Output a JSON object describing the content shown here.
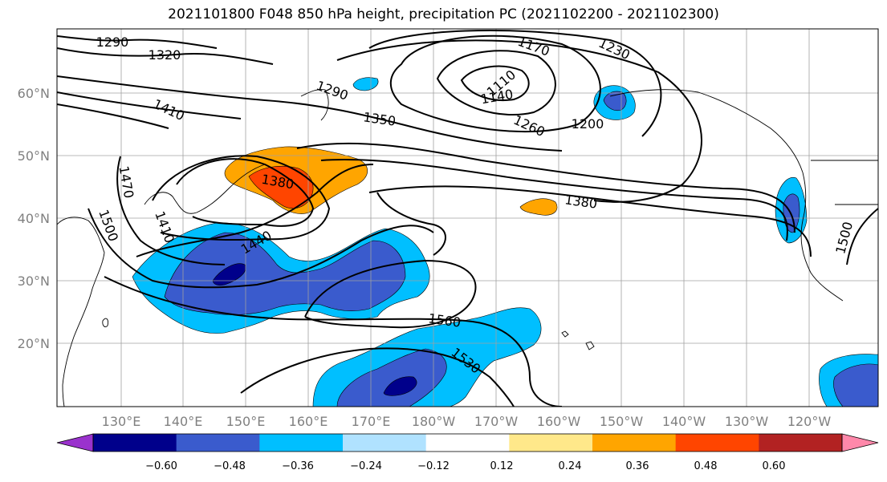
{
  "title": "2021101800 F048 850 hPa height, precipitation PC (2021102200 - 2021102300)",
  "latitude_labels": [
    "60°N",
    "50°N",
    "40°N",
    "30°N",
    "20°N"
  ],
  "longitude_labels": [
    "130°E",
    "140°E",
    "150°E",
    "160°E",
    "170°E",
    "180°W",
    "170°W",
    "160°W",
    "150°W",
    "140°W",
    "130°W",
    "120°W"
  ],
  "contour_labels": [
    "1290",
    "1320",
    "1410",
    "1350",
    "1290",
    "1170",
    "1230",
    "1110",
    "1140",
    "1260",
    "1200",
    "1470",
    "1380",
    "1410",
    "1500",
    "1440",
    "1380",
    "1500",
    "1560",
    "1530"
  ],
  "colorbar": {
    "tick_labels": [
      "−0.60",
      "−0.48",
      "−0.36",
      "−0.24",
      "−0.12",
      "0.12",
      "0.24",
      "0.36",
      "0.48",
      "0.60"
    ],
    "colors": [
      "#9a32cd",
      "#00008b",
      "#3a5bcd",
      "#00bfff",
      "#b0e2ff",
      "#ffffff",
      "#ffe88a",
      "#ffa500",
      "#ff4500",
      "#b22222",
      "#ff88aa"
    ]
  }
}
